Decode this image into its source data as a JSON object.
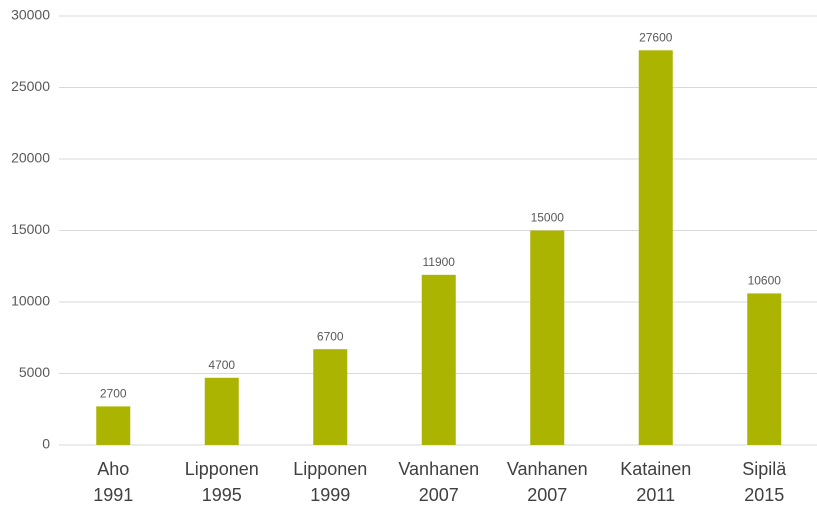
{
  "chart_data": {
    "type": "bar",
    "categories": [
      "Aho 1991",
      "Lipponen 1995",
      "Lipponen 1999",
      "Vanhanen 2007",
      "Vanhanen 2007",
      "Katainen 2011",
      "Sipilä 2015"
    ],
    "values": [
      2700,
      4700,
      6700,
      11900,
      15000,
      27600,
      10600
    ],
    "color": "#abb400",
    "ylim": [
      0,
      30000
    ],
    "yticks": [
      0,
      5000,
      10000,
      15000,
      20000,
      25000,
      30000
    ],
    "grid": true
  }
}
